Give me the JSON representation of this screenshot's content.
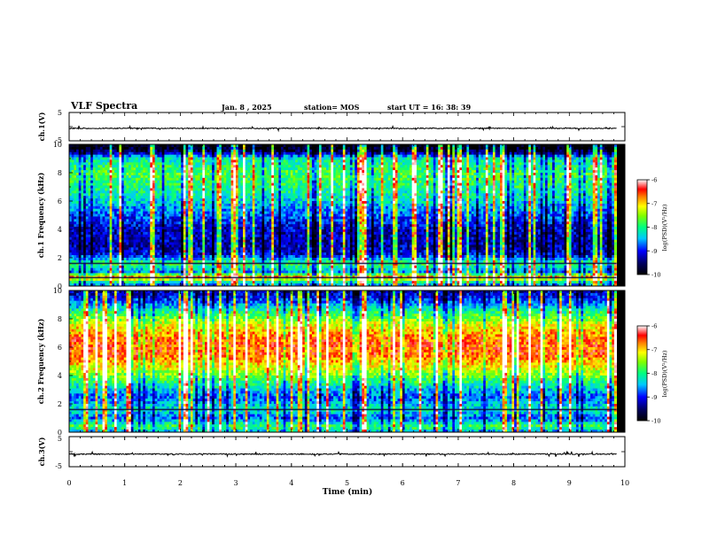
{
  "header": {
    "title": "VLF Spectra",
    "date": "Jan. 8 , 2025",
    "station": "station= MOS",
    "start_time": "start UT =  16: 38: 39"
  },
  "chart_data": [
    {
      "type": "line",
      "name": "ch1-waveform",
      "ylabel": "ch.1(V)",
      "ylim": [
        -5,
        5
      ],
      "yticks": [
        "5",
        "-5"
      ],
      "x_range": [
        0,
        9.85
      ],
      "baseline": -0.6,
      "noise_amplitude": 0.35
    },
    {
      "type": "heatmap",
      "name": "ch1-spectrogram",
      "ylabel": "ch.1 Frequency (kHz)",
      "ylim": [
        0,
        10
      ],
      "yticks": [
        "0",
        "2",
        "4",
        "6",
        "8",
        "10"
      ],
      "x_range": [
        0,
        9.85
      ],
      "colorbar": {
        "label": "log(PSD)(V²/Hz)",
        "range": [
          -10,
          -6
        ],
        "ticks": [
          "-6",
          "-7",
          "-8",
          "-9",
          "-10"
        ]
      },
      "band_profile": [
        [
          0.0,
          0.3
        ],
        [
          0.3,
          0.5
        ],
        [
          0.6,
          0.85
        ],
        [
          1.0,
          0.35
        ],
        [
          1.6,
          0.55
        ],
        [
          2.2,
          0.22
        ],
        [
          3.0,
          0.18
        ],
        [
          4.0,
          0.2
        ],
        [
          5.0,
          0.3
        ],
        [
          6.0,
          0.42
        ],
        [
          7.0,
          0.5
        ],
        [
          8.0,
          0.55
        ],
        [
          9.0,
          0.45
        ],
        [
          9.5,
          0.1
        ],
        [
          10.0,
          0.0
        ]
      ],
      "horizontal_lines_khz": [
        0.6,
        1.6
      ]
    },
    {
      "type": "heatmap",
      "name": "ch2-spectrogram",
      "ylabel": "ch.2 Frequency (kHz)",
      "ylim": [
        0,
        10
      ],
      "yticks": [
        "0",
        "2",
        "4",
        "6",
        "8",
        "10"
      ],
      "x_range": [
        0,
        9.85
      ],
      "colorbar": {
        "label": "log(PSD)(V²/Hz)",
        "range": [
          -10,
          -6
        ],
        "ticks": [
          "-6",
          "-7",
          "-8",
          "-9",
          "-10"
        ]
      },
      "band_profile": [
        [
          0.0,
          0.35
        ],
        [
          0.4,
          0.55
        ],
        [
          1.0,
          0.3
        ],
        [
          1.6,
          0.45
        ],
        [
          2.5,
          0.3
        ],
        [
          3.5,
          0.5
        ],
        [
          4.5,
          0.7
        ],
        [
          5.5,
          0.85
        ],
        [
          6.5,
          0.85
        ],
        [
          7.5,
          0.72
        ],
        [
          8.5,
          0.5
        ],
        [
          9.3,
          0.28
        ],
        [
          10.0,
          0.18
        ]
      ],
      "horizontal_lines_khz": [
        1.6
      ]
    },
    {
      "type": "line",
      "name": "ch3-waveform",
      "ylabel": "ch.3(V)",
      "ylim": [
        -5,
        5
      ],
      "yticks": [
        "5",
        "-5"
      ],
      "x_range": [
        0,
        9.85
      ],
      "baseline": -0.8,
      "noise_amplitude": 0.35
    }
  ],
  "x_axis": {
    "label": "Time (min)",
    "xlim": [
      0,
      10
    ],
    "ticks": [
      "0",
      "1",
      "2",
      "3",
      "4",
      "5",
      "6",
      "7",
      "8",
      "9",
      "10"
    ]
  }
}
